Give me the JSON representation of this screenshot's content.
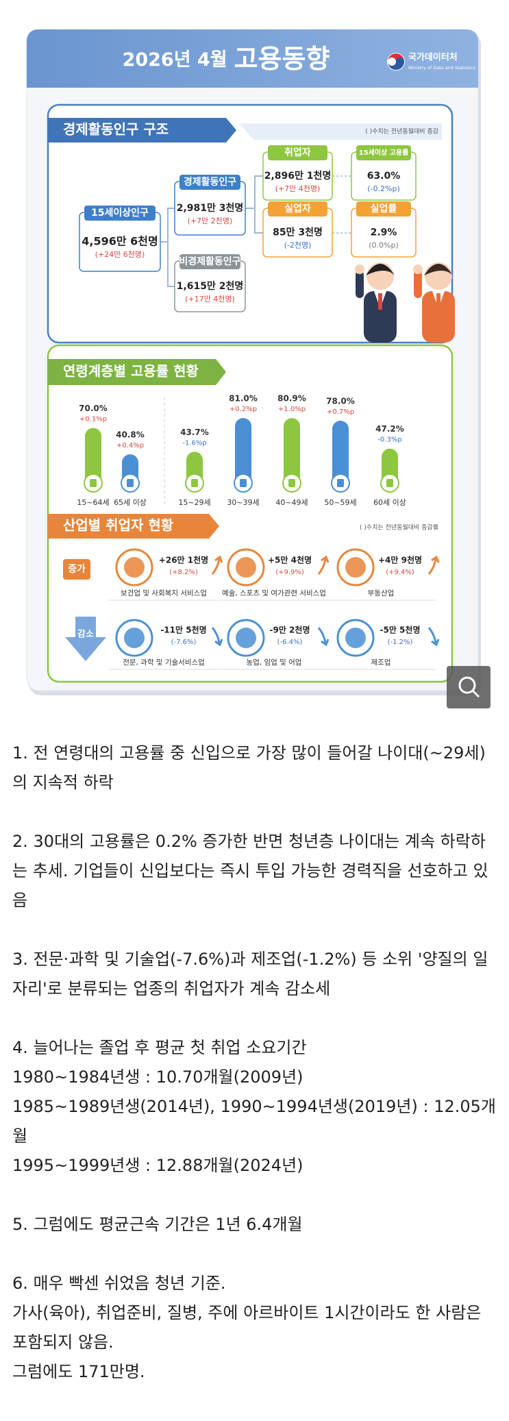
{
  "header": {
    "title": "2026년 4월",
    "title_emph": "고용동향",
    "logo": "국가데이터처",
    "logo_sub": "Ministry of Data and Statistics"
  },
  "population": {
    "title": "경제활동인구 구조",
    "note": "( )수치는 전년동월대비 증감",
    "nodes": [
      {
        "label": "15세이상인구",
        "value": "4,596만 6천명",
        "change": "(+24만 6천명)"
      },
      {
        "label": "경제활동인구",
        "value": "2,981만 3천명",
        "change": "(+7만 2천명)"
      },
      {
        "label": "비경제활동인구",
        "value": "1,615만 2천명",
        "change": "(+17만 4천명)"
      },
      {
        "label": "취업자",
        "value": "2,896만 1천명",
        "change": "(+7만 4천명)"
      },
      {
        "label": "15세이상 고용률",
        "value": "63.0%",
        "change": "(-0.2%p)"
      },
      {
        "label": "실업자",
        "value": "85만 3천명",
        "change": "(-2천명)"
      },
      {
        "label": "실업률",
        "value": "2.9%",
        "change": "(0.0%p)"
      }
    ]
  },
  "age": {
    "title": "연령계층별 고용률 현황",
    "groups": [
      {
        "label": "15~64세",
        "rate": 70.0,
        "rate_label": "70.0%",
        "change": "+0.1%p",
        "color": "#8dc63f"
      },
      {
        "label": "65세 이상",
        "rate": 40.8,
        "rate_label": "40.8%",
        "change": "+0.4%p",
        "color": "#4a8fd4"
      },
      {
        "label": "15~29세",
        "rate": 43.7,
        "rate_label": "43.7%",
        "change": "-1.6%p",
        "color": "#8dc63f"
      },
      {
        "label": "30~39세",
        "rate": 81.0,
        "rate_label": "81.0%",
        "change": "+0.2%p",
        "color": "#4a8fd4"
      },
      {
        "label": "40~49세",
        "rate": 80.9,
        "rate_label": "80.9%",
        "change": "+1.0%p",
        "color": "#8dc63f"
      },
      {
        "label": "50~59세",
        "rate": 78.0,
        "rate_label": "78.0%",
        "change": "+0.7%p",
        "color": "#4a8fd4"
      },
      {
        "label": "60세 이상",
        "rate": 47.2,
        "rate_label": "47.2%",
        "change": "-0.3%p",
        "color": "#8dc63f"
      }
    ]
  },
  "industry": {
    "title": "산업별 취업자 현황",
    "note": "( )수치는 전년동월대비 증감률",
    "increase": {
      "label": "증가",
      "items": [
        {
          "name": "보건업 및 사회복지 서비스업",
          "value": "+26만 1천명",
          "change": "(+8.2%)"
        },
        {
          "name": "예술, 스포츠 및 여가관련 서비스업",
          "value": "+5만 4천명",
          "change": "(+9.9%)"
        },
        {
          "name": "부동산업",
          "value": "+4만 9천명",
          "change": "(+9.4%)"
        }
      ]
    },
    "decrease": {
      "label": "감소",
      "items": [
        {
          "name": "전문, 과학 및 기술서비스업",
          "value": "-11만 5천명",
          "change": "(-7.6%)"
        },
        {
          "name": "농업, 임업 및 어업",
          "value": "-9만 2천명",
          "change": "(-6.4%)"
        },
        {
          "name": "제조업",
          "value": "-5만 5천명",
          "change": "(-1.2%)"
        }
      ]
    }
  },
  "post": {
    "paragraphs": [
      {
        "lines": [
          "1. 전 연령대의 고용률 중 신입으로 가장 많이 들어갈 나이대(~29세)의 지속적 하락"
        ]
      },
      {
        "lines": [
          "2. 30대의 고용률은 0.2% 증가한 반면 청년층 나이대는 계속 하락하는 추세. 기업들이 신입보다는 즉시 투입 가능한 경력직을 선호하고 있음"
        ]
      },
      {
        "lines": [
          "3. 전문·과학 및 기술업(-7.6%)과 제조업(-1.2%) 등 소위 '양질의 일자리'로 분류되는 업종의 취업자가 계속 감소세"
        ]
      },
      {
        "lines": [
          "4. 늘어나는 졸업 후 평균 첫 취업 소요기간",
          "1980~1984년생 : 10.70개월(2009년)",
          "1985~1989년생(2014년), 1990~1994년생(2019년) : 12.05개월",
          "1995~1999년생 : 12.88개월(2024년)"
        ]
      },
      {
        "lines": [
          "5. 그럼에도 평균근속 기간은 1년 6.4개월"
        ]
      },
      {
        "lines": [
          "6. 매우 빡센 쉬었음 청년 기준.",
          "가사(육아), 취업준비, 질병, 주에 아르바이트 1시간이라도 한 사람은 포함되지 않음.",
          "그럼에도 171만명."
        ]
      }
    ]
  }
}
